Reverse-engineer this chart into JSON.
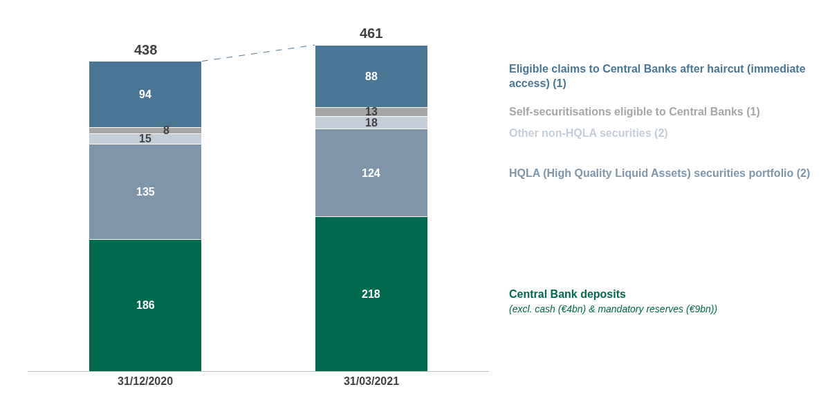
{
  "chart_data": {
    "type": "bar",
    "stacked": true,
    "data_labels": true,
    "legend": false,
    "categories": [
      "31/12/2020",
      "31/03/2021"
    ],
    "series": [
      {
        "name": "Central Bank deposits",
        "color": "#006a4e",
        "values": [
          186,
          218
        ]
      },
      {
        "name": "HQLA (High Quality Liquid Assets) securities portfolio (2)",
        "color": "#7f96aa",
        "values": [
          135,
          124
        ]
      },
      {
        "name": "Other non-HQLA securities (2)",
        "color": "#c3ced8",
        "values": [
          15,
          18
        ]
      },
      {
        "name": "Self-securitisations eligible to Central Banks (1)",
        "color": "#a6a6a6",
        "values": [
          8,
          13
        ]
      },
      {
        "name": "Eligible claims to Central Banks after haircut (immediate access) (1)",
        "color": "#4a7696",
        "values": [
          94,
          88
        ]
      }
    ],
    "totals": [
      "438",
      "461"
    ],
    "annotations": [
      "(excl. cash (€4bn) & mandatory reserves (€9bn))"
    ]
  }
}
